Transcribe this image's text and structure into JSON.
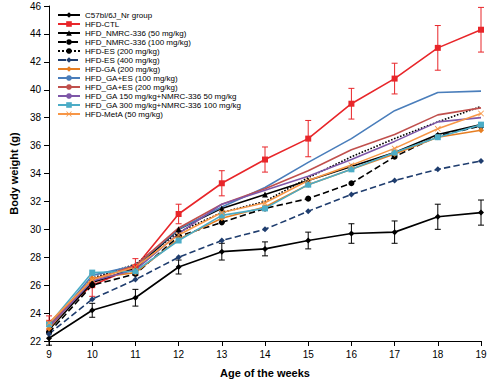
{
  "chart_data": {
    "type": "line",
    "x_label": "Age of the weeks",
    "y_label": "Body weight (g)",
    "categories": [
      "9",
      "10",
      "11",
      "12",
      "13",
      "14",
      "15",
      "16",
      "17",
      "18",
      "19"
    ],
    "ylim": [
      22,
      46
    ],
    "yticks": [
      22,
      24,
      26,
      28,
      30,
      32,
      34,
      36,
      38,
      40,
      42,
      44,
      46
    ],
    "grid": false,
    "legend": "upper left",
    "series": [
      {
        "name": "C57bl/6J_Nr group",
        "color": "#000000",
        "marker": "diamond",
        "line_style": "solid",
        "values": [
          22.2,
          24.2,
          25.1,
          27.3,
          28.4,
          28.6,
          29.2,
          29.7,
          29.8,
          30.9,
          31.2
        ],
        "errors": [
          0.5,
          0.5,
          0.6,
          0.5,
          0.6,
          0.5,
          0.6,
          0.7,
          0.8,
          0.9,
          0.9
        ]
      },
      {
        "name": "HFD-CTL",
        "color": "#e8262a",
        "marker": "square",
        "line_style": "solid",
        "values": [
          23.3,
          26.0,
          27.3,
          31.1,
          33.3,
          35.0,
          36.5,
          39.0,
          40.8,
          43.0,
          44.3
        ],
        "errors": [
          0.5,
          0.8,
          0.6,
          0.7,
          0.9,
          0.9,
          1.3,
          1.1,
          1.1,
          1.6,
          1.6
        ]
      },
      {
        "name": "HFD_NMRC-336 (50 mg/kg)",
        "color": "#000000",
        "marker": "triangle",
        "line_style": "solid",
        "values": [
          22.8,
          26.2,
          27.2,
          30.0,
          31.5,
          32.5,
          33.5,
          34.5,
          35.5,
          36.8,
          37.5
        ]
      },
      {
        "name": "HFD_NMRC-336 (100 mg/kg)",
        "color": "#000000",
        "marker": "circle",
        "line_style": "dashed",
        "values": [
          22.6,
          26.0,
          26.8,
          29.5,
          30.5,
          31.5,
          32.2,
          33.3,
          35.2,
          36.7,
          37.4
        ]
      },
      {
        "name": "HFD-ES (200 mg/kg)",
        "color": "#000000",
        "marker": "none",
        "line_style": "dotted",
        "values": [
          23.0,
          26.5,
          27.5,
          29.8,
          31.2,
          32.0,
          33.7,
          35.2,
          36.5,
          37.7,
          38.8
        ]
      },
      {
        "name": "HFD-ES (400 mg/kg)",
        "color": "#1f3d6e",
        "marker": "diamond",
        "line_style": "dashed",
        "values": [
          22.5,
          25.0,
          26.4,
          28.0,
          29.2,
          30.0,
          31.3,
          32.5,
          33.5,
          34.3,
          34.9
        ]
      },
      {
        "name": "HFD-GA (200 mg/kg)",
        "color": "#e67e22",
        "marker": "diamond",
        "line_style": "solid",
        "values": [
          22.9,
          26.5,
          26.9,
          29.3,
          30.8,
          31.6,
          33.2,
          34.3,
          35.4,
          36.6,
          37.1
        ]
      },
      {
        "name": "HFD_GA+ES (100 mg/kg)",
        "color": "#4a7ebb",
        "marker": "none",
        "line_style": "solid",
        "values": [
          23.0,
          26.7,
          27.4,
          30.0,
          31.6,
          33.0,
          34.8,
          36.5,
          38.5,
          39.8,
          39.9
        ]
      },
      {
        "name": "HFD_GA+ES (200 mg/kg)",
        "color": "#c0504d",
        "marker": "none",
        "line_style": "solid",
        "values": [
          23.1,
          26.4,
          27.4,
          30.1,
          31.8,
          32.9,
          34.2,
          35.7,
          36.8,
          38.2,
          38.7
        ]
      },
      {
        "name": "HFD_GA 150 mg/kg+NMRC-336 50 mg/kg",
        "color": "#7e57a8",
        "marker": "none",
        "line_style": "solid",
        "values": [
          23.0,
          26.3,
          27.1,
          29.7,
          31.8,
          32.8,
          33.8,
          35.0,
          36.3,
          37.7,
          38.0
        ]
      },
      {
        "name": "HFD_GA 300 mg/kg+NMRC-336 100 mg/kg",
        "color": "#4bacc6",
        "marker": "square",
        "line_style": "solid",
        "values": [
          23.2,
          26.9,
          27.0,
          29.2,
          31.0,
          31.5,
          33.2,
          34.3,
          35.5,
          36.6,
          37.5
        ]
      },
      {
        "name": "HFD-MetA (50 mg/kg)",
        "color": "#f79646",
        "marker": "x",
        "line_style": "solid",
        "values": [
          23.3,
          26.4,
          27.3,
          29.6,
          31.2,
          31.9,
          33.5,
          34.6,
          35.8,
          37.2,
          38.3
        ]
      }
    ]
  }
}
